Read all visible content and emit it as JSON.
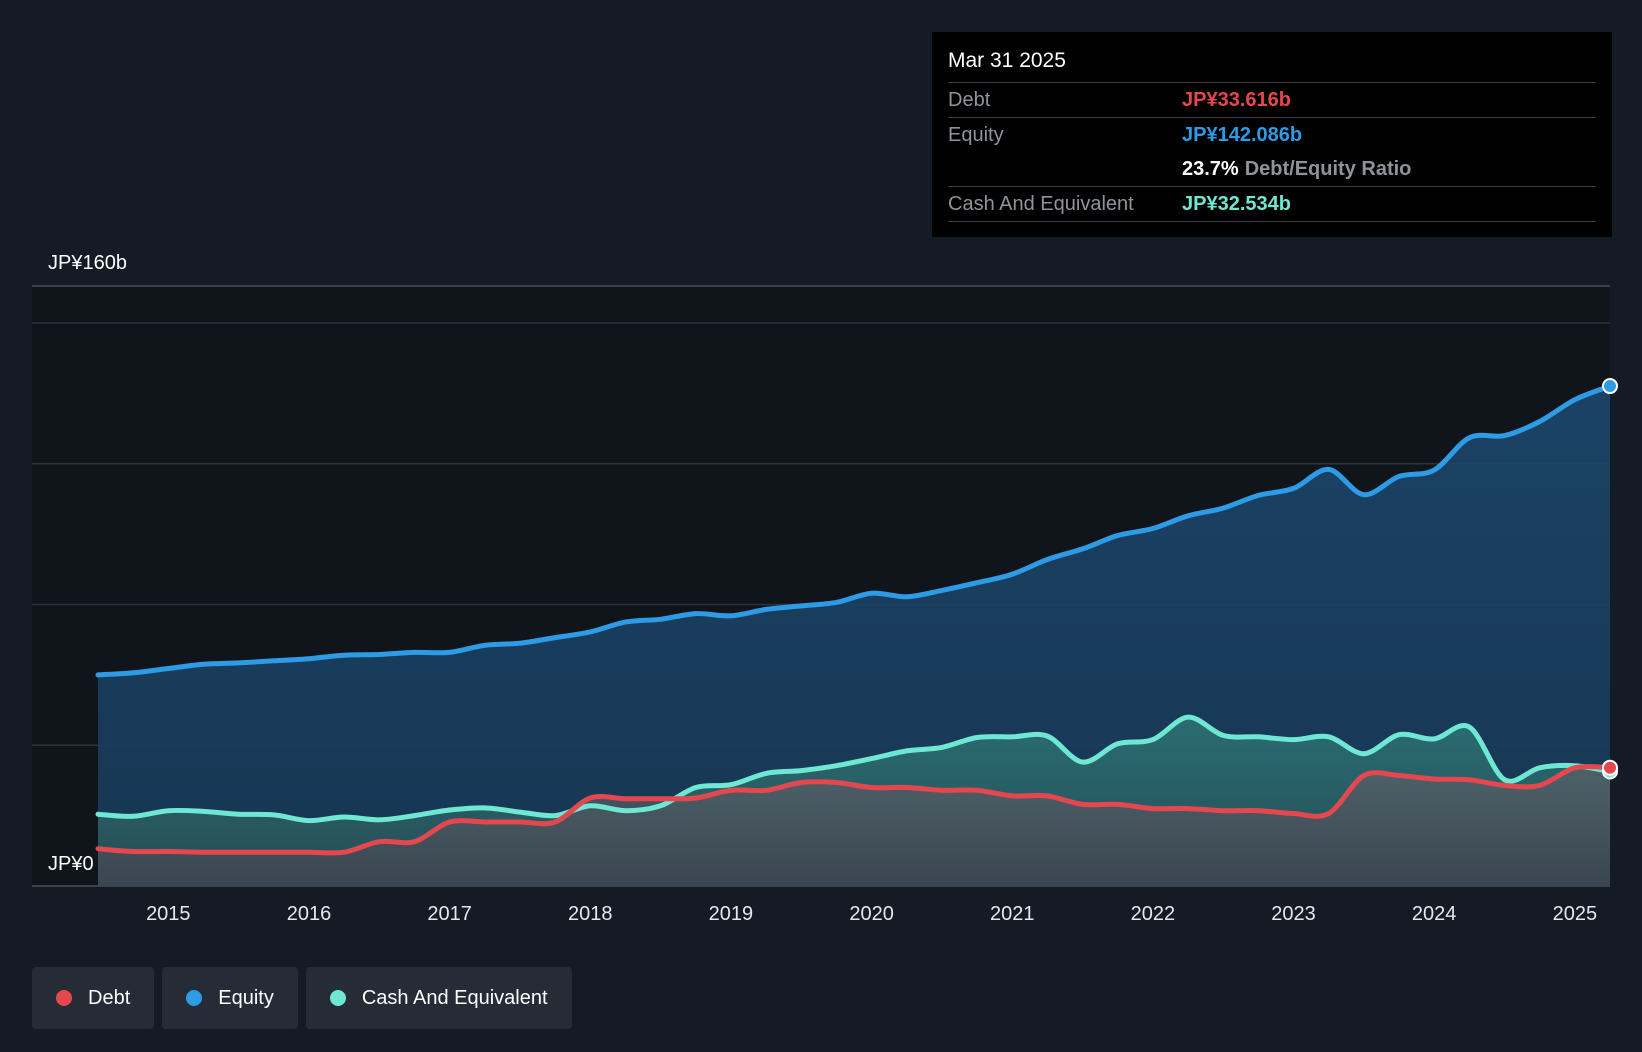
{
  "colors": {
    "debt": "#e5474f",
    "equity": "#2d9be6",
    "cash": "#6ee8d3",
    "background": "#151b24",
    "plot_background": "#10151c"
  },
  "tooltip": {
    "date": "Mar 31 2025",
    "debt_label": "Debt",
    "debt_value": "JP¥33.616b",
    "equity_label": "Equity",
    "equity_value": "JP¥142.086b",
    "ratio_value": "23.7%",
    "ratio_label": "Debt/Equity Ratio",
    "cash_label": "Cash And Equivalent",
    "cash_value": "JP¥32.534b"
  },
  "legend": {
    "debt": "Debt",
    "equity": "Equity",
    "cash": "Cash And Equivalent"
  },
  "chart_data": {
    "type": "area",
    "title": "",
    "xlabel": "",
    "ylabel": "",
    "y_top_label": "JP¥160b",
    "y_bottom_label": "JP¥0",
    "ylim": [
      0,
      160
    ],
    "xlim": [
      2014.0,
      2025.25
    ],
    "x_ticks": [
      "2015",
      "2016",
      "2017",
      "2018",
      "2019",
      "2020",
      "2021",
      "2022",
      "2023",
      "2024",
      "2025"
    ],
    "legend_position": "bottom-left",
    "grid": true,
    "series": [
      {
        "name": "Equity",
        "color": "#2d9be6",
        "points": [
          [
            2014.5,
            60.0
          ],
          [
            2014.75,
            60.6
          ],
          [
            2015.0,
            61.8
          ],
          [
            2015.25,
            63.0
          ],
          [
            2015.5,
            63.4
          ],
          [
            2015.75,
            64.0
          ],
          [
            2016.0,
            64.6
          ],
          [
            2016.25,
            65.6
          ],
          [
            2016.5,
            65.8
          ],
          [
            2016.75,
            66.4
          ],
          [
            2017.0,
            66.4
          ],
          [
            2017.25,
            68.4
          ],
          [
            2017.5,
            69.0
          ],
          [
            2017.75,
            70.6
          ],
          [
            2018.0,
            72.2
          ],
          [
            2018.25,
            75.0
          ],
          [
            2018.5,
            75.8
          ],
          [
            2018.75,
            77.4
          ],
          [
            2019.0,
            76.8
          ],
          [
            2019.25,
            78.6
          ],
          [
            2019.5,
            79.6
          ],
          [
            2019.75,
            80.6
          ],
          [
            2020.0,
            83.2
          ],
          [
            2020.25,
            82.2
          ],
          [
            2020.5,
            84.0
          ],
          [
            2020.75,
            86.2
          ],
          [
            2021.0,
            88.6
          ],
          [
            2021.25,
            92.8
          ],
          [
            2021.5,
            95.8
          ],
          [
            2021.75,
            99.6
          ],
          [
            2022.0,
            101.6
          ],
          [
            2022.25,
            105.2
          ],
          [
            2022.5,
            107.4
          ],
          [
            2022.75,
            111.0
          ],
          [
            2023.0,
            113.0
          ],
          [
            2023.25,
            118.4
          ],
          [
            2023.5,
            111.2
          ],
          [
            2023.75,
            116.4
          ],
          [
            2024.0,
            118.2
          ],
          [
            2024.25,
            127.4
          ],
          [
            2024.5,
            128.0
          ],
          [
            2024.75,
            132.0
          ],
          [
            2025.0,
            138.2
          ],
          [
            2025.25,
            142.086
          ]
        ]
      },
      {
        "name": "Cash And Equivalent",
        "color": "#6ee8d3",
        "points": [
          [
            2014.5,
            20.4
          ],
          [
            2014.75,
            19.8
          ],
          [
            2015.0,
            21.4
          ],
          [
            2015.25,
            21.2
          ],
          [
            2015.5,
            20.4
          ],
          [
            2015.75,
            20.2
          ],
          [
            2016.0,
            18.6
          ],
          [
            2016.25,
            19.6
          ],
          [
            2016.5,
            18.8
          ],
          [
            2016.75,
            20.0
          ],
          [
            2017.0,
            21.6
          ],
          [
            2017.25,
            22.2
          ],
          [
            2017.5,
            21.0
          ],
          [
            2017.75,
            20.0
          ],
          [
            2018.0,
            22.8
          ],
          [
            2018.25,
            21.4
          ],
          [
            2018.5,
            22.8
          ],
          [
            2018.75,
            28.0
          ],
          [
            2019.0,
            28.8
          ],
          [
            2019.25,
            32.0
          ],
          [
            2019.5,
            32.8
          ],
          [
            2019.75,
            34.2
          ],
          [
            2020.0,
            36.2
          ],
          [
            2020.25,
            38.4
          ],
          [
            2020.5,
            39.4
          ],
          [
            2020.75,
            42.2
          ],
          [
            2021.0,
            42.4
          ],
          [
            2021.25,
            42.6
          ],
          [
            2021.5,
            35.2
          ],
          [
            2021.75,
            40.4
          ],
          [
            2022.0,
            41.6
          ],
          [
            2022.25,
            48.0
          ],
          [
            2022.5,
            42.8
          ],
          [
            2022.75,
            42.4
          ],
          [
            2023.0,
            41.6
          ],
          [
            2023.25,
            42.4
          ],
          [
            2023.5,
            37.6
          ],
          [
            2023.75,
            43.0
          ],
          [
            2024.0,
            41.8
          ],
          [
            2024.25,
            45.2
          ],
          [
            2024.5,
            30.2
          ],
          [
            2024.75,
            33.6
          ],
          [
            2025.0,
            34.2
          ],
          [
            2025.25,
            32.534
          ]
        ]
      },
      {
        "name": "Debt",
        "color": "#e5474f",
        "points": [
          [
            2014.5,
            10.6
          ],
          [
            2014.75,
            9.8
          ],
          [
            2015.0,
            9.8
          ],
          [
            2015.25,
            9.6
          ],
          [
            2015.5,
            9.6
          ],
          [
            2015.75,
            9.6
          ],
          [
            2016.0,
            9.6
          ],
          [
            2016.25,
            9.6
          ],
          [
            2016.5,
            12.6
          ],
          [
            2016.75,
            12.6
          ],
          [
            2017.0,
            18.2
          ],
          [
            2017.25,
            18.2
          ],
          [
            2017.5,
            18.2
          ],
          [
            2017.75,
            18.2
          ],
          [
            2018.0,
            25.0
          ],
          [
            2018.25,
            24.8
          ],
          [
            2018.5,
            24.8
          ],
          [
            2018.75,
            25.0
          ],
          [
            2019.0,
            27.2
          ],
          [
            2019.25,
            27.2
          ],
          [
            2019.5,
            29.4
          ],
          [
            2019.75,
            29.4
          ],
          [
            2020.0,
            28.0
          ],
          [
            2020.25,
            28.0
          ],
          [
            2020.5,
            27.2
          ],
          [
            2020.75,
            27.2
          ],
          [
            2021.0,
            25.6
          ],
          [
            2021.25,
            25.6
          ],
          [
            2021.5,
            23.2
          ],
          [
            2021.75,
            23.2
          ],
          [
            2022.0,
            22.0
          ],
          [
            2022.25,
            22.0
          ],
          [
            2022.5,
            21.4
          ],
          [
            2022.75,
            21.4
          ],
          [
            2023.0,
            20.6
          ],
          [
            2023.25,
            20.6
          ],
          [
            2023.5,
            31.4
          ],
          [
            2023.75,
            31.4
          ],
          [
            2024.0,
            30.4
          ],
          [
            2024.25,
            30.2
          ],
          [
            2024.5,
            28.6
          ],
          [
            2024.75,
            28.6
          ],
          [
            2025.0,
            33.6
          ],
          [
            2025.25,
            33.616
          ]
        ]
      }
    ]
  }
}
